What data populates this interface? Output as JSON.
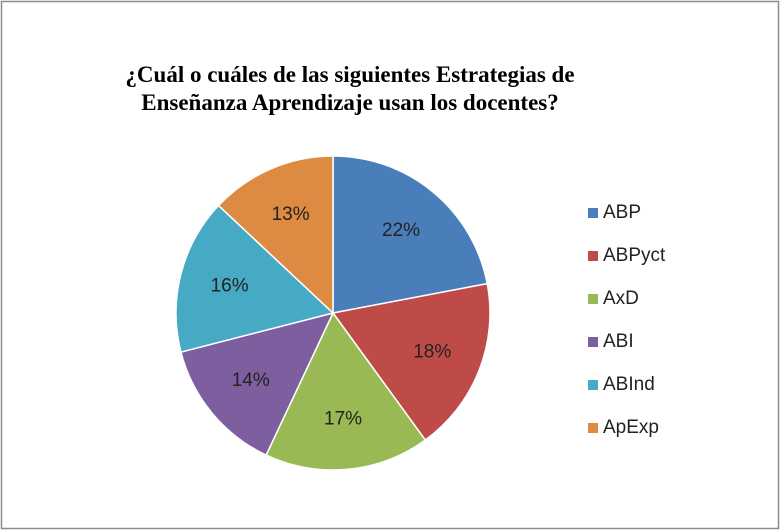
{
  "chart_data": {
    "type": "pie",
    "title": [
      "¿Cuál o cuáles de las siguientes Estrategias de",
      "Enseñanza Aprendizaje usan los docentes?"
    ],
    "categories": [
      "ABP",
      "ABPyct",
      "AxD",
      "ABI",
      "ABInd",
      "ApExp"
    ],
    "values": [
      22,
      18,
      17,
      14,
      16,
      13
    ],
    "value_labels": [
      "22%",
      "18%",
      "17%",
      "14%",
      "16%",
      "13%"
    ],
    "colors": [
      "#4a7ebb",
      "#be4b48",
      "#98b954",
      "#7d5fa0",
      "#46aac5",
      "#dd8a43"
    ],
    "legend": "right"
  }
}
